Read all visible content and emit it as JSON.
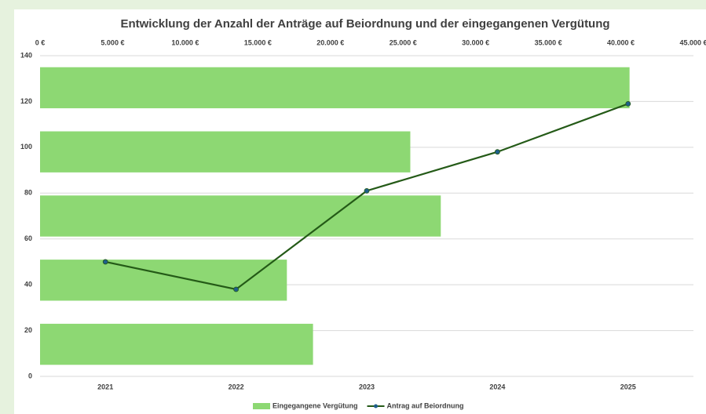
{
  "chart_data": {
    "type": "combo",
    "title": "Entwicklung der Anzahl der Anträge auf Beiordnung und der eingegangenen Vergütung",
    "categories": [
      "2021",
      "2022",
      "2023",
      "2024",
      "2025"
    ],
    "ylim": [
      0,
      140
    ],
    "yticks": [
      0,
      20,
      40,
      60,
      80,
      100,
      120,
      140
    ],
    "x2lim": [
      0,
      45000
    ],
    "x2ticks": [
      {
        "value": 0,
        "label": "0 €"
      },
      {
        "value": 5000,
        "label": "5.000 €"
      },
      {
        "value": 10000,
        "label": "10.000 €"
      },
      {
        "value": 15000,
        "label": "15.000 €"
      },
      {
        "value": 20000,
        "label": "20.000 €"
      },
      {
        "value": 25000,
        "label": "25.000 €"
      },
      {
        "value": 30000,
        "label": "30.000 €"
      },
      {
        "value": 35000,
        "label": "35.000 €"
      },
      {
        "value": 40000,
        "label": "40.000 €"
      },
      {
        "value": 45000,
        "label": "45.000 €"
      }
    ],
    "grid": true,
    "series": [
      {
        "name": "Eingegangene Vergütung",
        "type": "barh",
        "axis": "x2",
        "color": "#8dd873",
        "values": [
          18800,
          17000,
          27600,
          25500,
          40600
        ]
      },
      {
        "name": "Antrag auf Beiordnung",
        "type": "line",
        "color": "#245a17",
        "marker_color": "#1f5f8b",
        "values": [
          50,
          38,
          81,
          98,
          119
        ]
      }
    ],
    "legend": "bottom"
  }
}
